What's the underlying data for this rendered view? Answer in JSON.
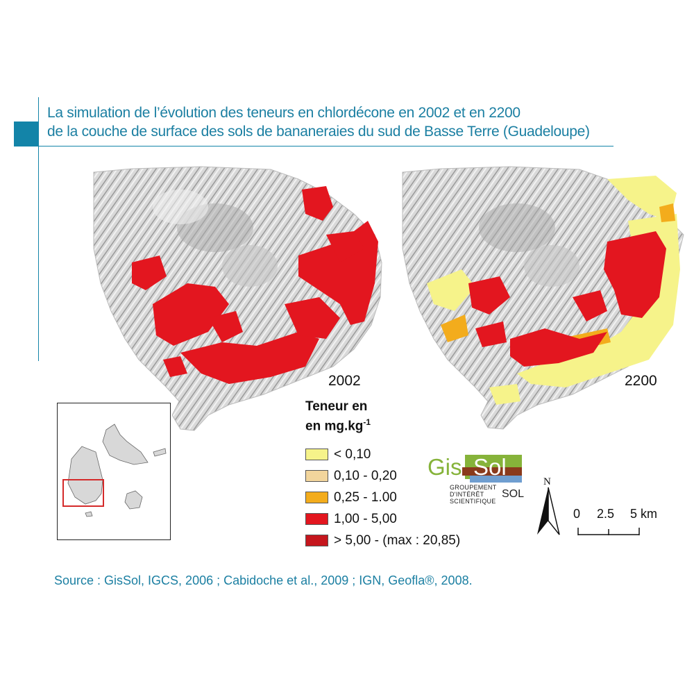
{
  "title": {
    "line1": "La simulation de l’évolution des teneurs en chlordécone en 2002 et en 2200",
    "line2": "de la couche de surface des sols de bananeraies du sud de Basse Terre (Guadeloupe)"
  },
  "maps": [
    {
      "year": "2002"
    },
    {
      "year": "2200"
    }
  ],
  "legend": {
    "title_line1": "Teneur en",
    "title_line2": "en mg.kg",
    "title_exponent": "-1",
    "items": [
      {
        "label": "< 0,10",
        "color": "#f6f38a"
      },
      {
        "label": "0,10 - 0,20",
        "color": "#f2d59c"
      },
      {
        "label": "0,25 - 1.00",
        "color": "#f3ac1c"
      },
      {
        "label": "1,00 - 5,00",
        "color": "#e3161f"
      },
      {
        "label": "> 5,00 - (max : 20,85)",
        "color": "#c5161d"
      }
    ]
  },
  "logo": {
    "gis": "Gis",
    "sol": "Sol",
    "sub_line1": "GROUPEMENT",
    "sub_line2": "D'INTÉRÊT",
    "sub_line3": "SCIENTIFIQUE",
    "sub_sol": "SOL"
  },
  "north_arrow": {
    "label": "N"
  },
  "scale_bar": {
    "tick0": "0",
    "tick1": "2.5",
    "tick2": "5 km"
  },
  "source": "Source : GisSol, IGCS, 2006 ; Cabidoche et al., 2009 ; IGN, Geofla®, 2008.",
  "colors": {
    "accent": "#1384a8",
    "relief": "#cfcfcf",
    "high": "#e3161f",
    "low": "#f6f38a",
    "inset_box": "#d42a2a"
  }
}
